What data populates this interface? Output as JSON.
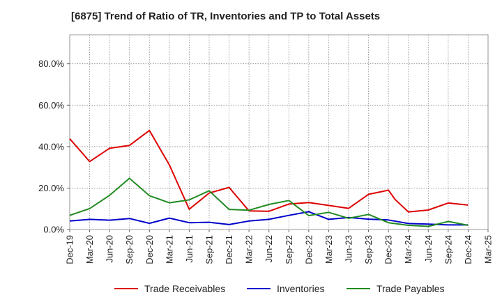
{
  "chart_data": {
    "type": "line",
    "title": "[6875]  Trend of Ratio of TR, Inventories and TP to Total Assets",
    "xlabel": "",
    "ylabel": "",
    "x_tick_labels": [
      "Dec-19",
      "Mar-20",
      "Jun-20",
      "Sep-20",
      "Dec-20",
      "Mar-21",
      "Jun-21",
      "Sep-21",
      "Dec-21",
      "Mar-22",
      "Jun-22",
      "Sep-22",
      "Dec-22",
      "Mar-23",
      "Jun-23",
      "Sep-23",
      "Dec-23",
      "Mar-24",
      "Jun-24",
      "Sep-24",
      "Dec-24",
      "Mar-25"
    ],
    "y_tick_labels": [
      "0.0%",
      "20.0%",
      "40.0%",
      "60.0%",
      "80.0%"
    ],
    "y_ticks": [
      0,
      20,
      40,
      60,
      80
    ],
    "ylim": [
      0,
      94
    ],
    "grid": true,
    "legend_position": "bottom",
    "series": [
      {
        "name": "Trade Receivables",
        "color": "#dd0000",
        "points": [
          [
            "Dec-19",
            43.8
          ],
          [
            "Mar-20",
            32.8
          ],
          [
            "Jun-20",
            39.2
          ],
          [
            "Sep-20",
            40.6
          ],
          [
            "Dec-20",
            47.8
          ],
          [
            "Mar-21",
            31.2
          ],
          [
            "Jun-21",
            9.8
          ],
          [
            "Sep-21",
            17.6
          ],
          [
            "Dec-21",
            20.3
          ],
          [
            "Mar-22",
            9.0
          ],
          [
            "Jun-22",
            8.8
          ],
          [
            "Sep-22",
            12.3
          ],
          [
            "Dec-22",
            13.0
          ],
          [
            "Mar-23",
            11.6
          ],
          [
            "Jun-23",
            10.2
          ],
          [
            "Sep-23",
            17.0
          ],
          [
            "Nov-23",
            18.3
          ],
          [
            "Dec-23",
            19.0
          ],
          [
            "Jan-24",
            14.5
          ],
          [
            "Mar-24",
            8.5
          ],
          [
            "Jun-24",
            9.4
          ],
          [
            "Sep-24",
            12.8
          ],
          [
            "Dec-24",
            11.8
          ]
        ]
      },
      {
        "name": "Inventories",
        "color": "#0000cc",
        "points": [
          [
            "Dec-19",
            4.1
          ],
          [
            "Mar-20",
            4.9
          ],
          [
            "Jun-20",
            4.5
          ],
          [
            "Sep-20",
            5.3
          ],
          [
            "Dec-20",
            3.0
          ],
          [
            "Mar-21",
            5.5
          ],
          [
            "Jun-21",
            3.3
          ],
          [
            "Sep-21",
            3.5
          ],
          [
            "Dec-21",
            2.4
          ],
          [
            "Mar-22",
            4.1
          ],
          [
            "Jun-22",
            4.9
          ],
          [
            "Sep-22",
            6.8
          ],
          [
            "Dec-22",
            8.6
          ],
          [
            "Mar-23",
            4.9
          ],
          [
            "Jun-23",
            5.8
          ],
          [
            "Sep-23",
            5.0
          ],
          [
            "Dec-23",
            4.6
          ],
          [
            "Mar-24",
            2.9
          ],
          [
            "Jun-24",
            2.6
          ],
          [
            "Sep-24",
            2.2
          ],
          [
            "Dec-24",
            2.2
          ]
        ]
      },
      {
        "name": "Trade Payables",
        "color": "#228b22",
        "points": [
          [
            "Dec-19",
            6.8
          ],
          [
            "Mar-20",
            10.1
          ],
          [
            "Jun-20",
            16.5
          ],
          [
            "Sep-20",
            24.7
          ],
          [
            "Dec-20",
            16.3
          ],
          [
            "Mar-21",
            12.9
          ],
          [
            "Jun-21",
            14.3
          ],
          [
            "Sep-21",
            18.7
          ],
          [
            "Dec-21",
            9.7
          ],
          [
            "Mar-22",
            9.3
          ],
          [
            "Jun-22",
            12.1
          ],
          [
            "Sep-22",
            14.0
          ],
          [
            "Dec-22",
            6.7
          ],
          [
            "Mar-23",
            8.3
          ],
          [
            "Jun-23",
            5.4
          ],
          [
            "Sep-23",
            7.3
          ],
          [
            "Dec-23",
            3.3
          ],
          [
            "Mar-24",
            2.0
          ],
          [
            "Jun-24",
            1.5
          ],
          [
            "Sep-24",
            3.9
          ],
          [
            "Dec-24",
            2.0
          ]
        ]
      }
    ]
  }
}
